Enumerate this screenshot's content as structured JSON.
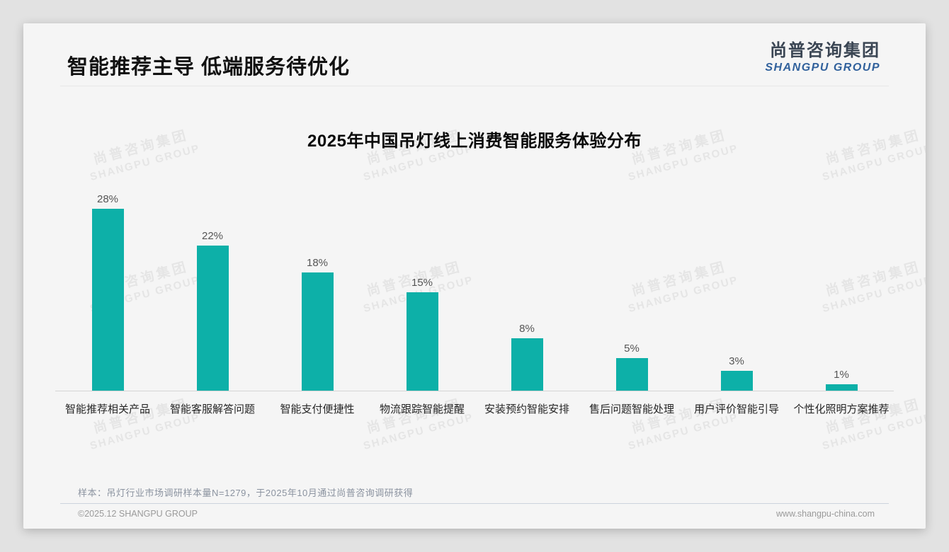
{
  "page": {
    "title": "智能推荐主导 低端服务待优化",
    "logo": {
      "cn": "尚普咨询集团",
      "en": "SHANGPU GROUP"
    },
    "watermark": {
      "line1": "尚普咨询集团",
      "line2": "SHANGPU GROUP"
    },
    "footnote": "样本：吊灯行业市场调研样本量N=1279，于2025年10月通过尚普咨询调研获得",
    "footer": {
      "left": "©2025.12 SHANGPU GROUP",
      "right": "www.shangpu-china.com"
    }
  },
  "chart_data": {
    "type": "bar",
    "title": "2025年中国吊灯线上消费智能服务体验分布",
    "categories": [
      "智能推荐相关产品",
      "智能客服解答问题",
      "智能支付便捷性",
      "物流跟踪智能提醒",
      "安装预约智能安排",
      "售后问题智能处理",
      "用户评价智能引导",
      "个性化照明方案推荐"
    ],
    "values": [
      28,
      22,
      18,
      15,
      8,
      5,
      3,
      1
    ],
    "unit": "%",
    "bar_color": "#0db0a8",
    "ylim": [
      0,
      30
    ],
    "grid": false,
    "legend": "none",
    "data_labels": true,
    "xlabel": "",
    "ylabel": ""
  }
}
